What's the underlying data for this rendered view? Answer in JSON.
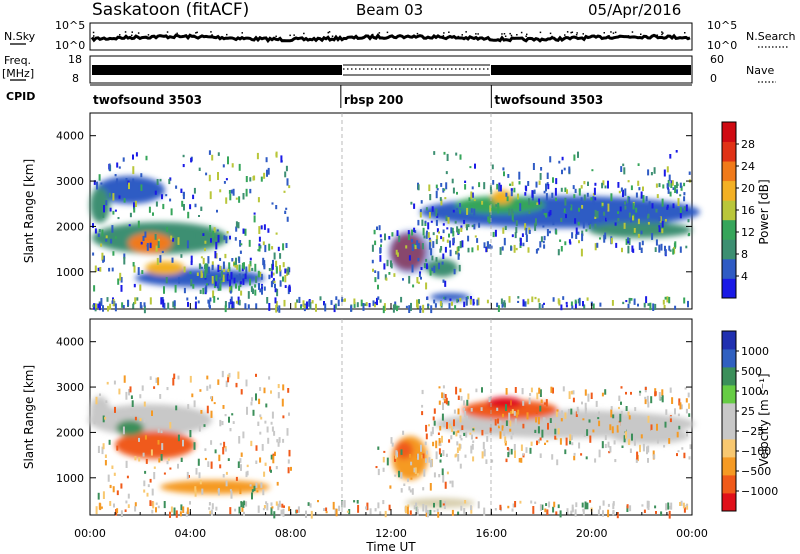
{
  "header": {
    "station": "Saskatoon (fitACF)",
    "beam": "Beam 03",
    "date": "05/Apr/2016"
  },
  "side_labels": {
    "nsky": "N.Sky",
    "freq_line1": "Freq.",
    "freq_line2": "[MHz]",
    "cpid": "CPID",
    "nsearch": "N.Search",
    "nave": "Nave"
  },
  "colors": {
    "power_scale": [
      "#1a1ae6",
      "#2f5bc4",
      "#3d8f72",
      "#36a55a",
      "#b9c63a",
      "#f3b024",
      "#f07a1a",
      "#e03216",
      "#cf0a12"
    ],
    "velocity_scale": [
      "#e0101a",
      "#f05a1a",
      "#f59a24",
      "#f8c870",
      "#c8c8c8",
      "#c8c8c8",
      "#66cc44",
      "#3b8f5a",
      "#3060c0",
      "#2030b0"
    ],
    "ground_scatter": "#bebebe"
  },
  "chart_data": [
    {
      "type": "line",
      "name_panel": "nsky-nsearch",
      "y_left_ticks": [
        "10^5",
        "10^0"
      ],
      "y_right_ticks": [
        "10^5",
        "10^0"
      ],
      "x_range_hours": [
        0,
        24
      ]
    },
    {
      "type": "line",
      "name_panel": "freq-nave",
      "y_left_ticks": [
        "18",
        "8"
      ],
      "y_right_ticks": [
        "60",
        "0"
      ],
      "x_range_hours": [
        0,
        24
      ]
    },
    {
      "type": "table",
      "name_panel": "cpid",
      "segments": [
        {
          "label": "twofsound 3503",
          "start_hour": 0,
          "end_hour": 10
        },
        {
          "label": "rbsp 200",
          "start_hour": 10,
          "end_hour": 16
        },
        {
          "label": "twofsound 3503",
          "start_hour": 16,
          "end_hour": 24
        }
      ]
    },
    {
      "type": "heatmap",
      "name_panel": "power",
      "ylabel": "Slant Range [km]",
      "ylim": [
        180,
        4500
      ],
      "yticks": [
        1000,
        2000,
        3000,
        4000
      ],
      "colorbar_label": "Power [dB]",
      "colorbar_ticks": [
        "4",
        "8",
        "12",
        "16",
        "20",
        "24",
        "28"
      ],
      "clim": [
        0,
        30
      ]
    },
    {
      "type": "heatmap",
      "name_panel": "velocity",
      "ylabel": "Slant Range [km]",
      "ylim": [
        180,
        4500
      ],
      "yticks": [
        1000,
        2000,
        3000,
        4000
      ],
      "colorbar_label": "Velocity [m s⁻¹]",
      "colorbar_ticks": [
        "1000",
        "500",
        "100",
        "25",
        "−25",
        "−100",
        "−500",
        "−1000"
      ],
      "xlabel": "Time UT",
      "xticks": [
        "00:00",
        "04:00",
        "08:00",
        "12:00",
        "16:00",
        "20:00",
        "00:00"
      ],
      "xlim_hours": [
        0,
        24
      ]
    }
  ]
}
